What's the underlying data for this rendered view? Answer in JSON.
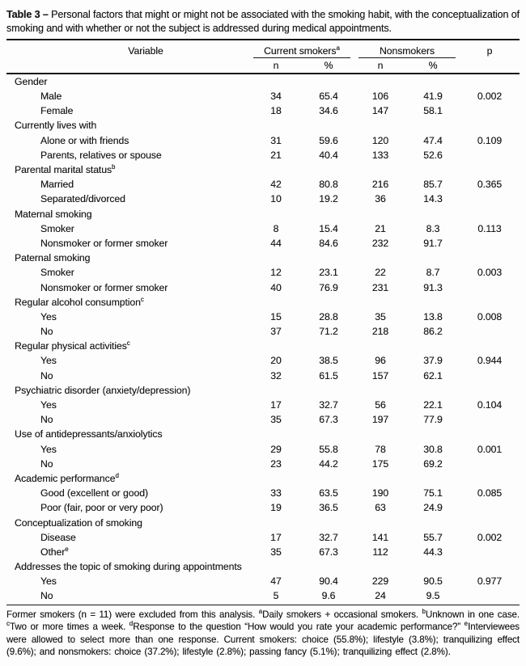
{
  "title": {
    "label": "Table 3 –",
    "text": "Personal factors that might or might not be associated with the smoking habit, with the conceptualization of smoking and with whether or not the subject is addressed during medical appointments."
  },
  "header": {
    "variable": "Variable",
    "group1": "Current smokers",
    "group1_sup": "a",
    "group2": "Nonsmokers",
    "p": "p",
    "col_n": "n",
    "col_pct": "%"
  },
  "sections": [
    {
      "label": "Gender",
      "sup": "",
      "rows": [
        {
          "label": "Male",
          "sup": "",
          "n1": "34",
          "pct1": "65.4",
          "n2": "106",
          "pct2": "41.9",
          "p": "0.002"
        },
        {
          "label": "Female",
          "sup": "",
          "n1": "18",
          "pct1": "34.6",
          "n2": "147",
          "pct2": "58.1",
          "p": ""
        }
      ]
    },
    {
      "label": "Currently lives with",
      "sup": "",
      "rows": [
        {
          "label": "Alone or with friends",
          "sup": "",
          "n1": "31",
          "pct1": "59.6",
          "n2": "120",
          "pct2": "47.4",
          "p": "0.109"
        },
        {
          "label": "Parents, relatives or spouse",
          "sup": "",
          "n1": "21",
          "pct1": "40.4",
          "n2": "133",
          "pct2": "52.6",
          "p": ""
        }
      ]
    },
    {
      "label": "Parental marital status",
      "sup": "b",
      "rows": [
        {
          "label": "Married",
          "sup": "",
          "n1": "42",
          "pct1": "80.8",
          "n2": "216",
          "pct2": "85.7",
          "p": "0.365"
        },
        {
          "label": "Separated/divorced",
          "sup": "",
          "n1": "10",
          "pct1": "19.2",
          "n2": "36",
          "pct2": "14.3",
          "p": ""
        }
      ]
    },
    {
      "label": "Maternal smoking",
      "sup": "",
      "rows": [
        {
          "label": "Smoker",
          "sup": "",
          "n1": "8",
          "pct1": "15.4",
          "n2": "21",
          "pct2": "8.3",
          "p": "0.113"
        },
        {
          "label": "Nonsmoker or former smoker",
          "sup": "",
          "n1": "44",
          "pct1": "84.6",
          "n2": "232",
          "pct2": "91.7",
          "p": ""
        }
      ]
    },
    {
      "label": "Paternal smoking",
      "sup": "",
      "rows": [
        {
          "label": "Smoker",
          "sup": "",
          "n1": "12",
          "pct1": "23.1",
          "n2": "22",
          "pct2": "8.7",
          "p": "0.003"
        },
        {
          "label": "Nonsmoker or former smoker",
          "sup": "",
          "n1": "40",
          "pct1": "76.9",
          "n2": "231",
          "pct2": "91.3",
          "p": ""
        }
      ]
    },
    {
      "label": "Regular alcohol consumption",
      "sup": "c",
      "rows": [
        {
          "label": "Yes",
          "sup": "",
          "n1": "15",
          "pct1": "28.8",
          "n2": "35",
          "pct2": "13.8",
          "p": "0.008"
        },
        {
          "label": "No",
          "sup": "",
          "n1": "37",
          "pct1": "71.2",
          "n2": "218",
          "pct2": "86.2",
          "p": ""
        }
      ]
    },
    {
      "label": "Regular physical activities",
      "sup": "c",
      "rows": [
        {
          "label": "Yes",
          "sup": "",
          "n1": "20",
          "pct1": "38.5",
          "n2": "96",
          "pct2": "37.9",
          "p": "0.944"
        },
        {
          "label": "No",
          "sup": "",
          "n1": "32",
          "pct1": "61.5",
          "n2": "157",
          "pct2": "62.1",
          "p": ""
        }
      ]
    },
    {
      "label": "Psychiatric disorder (anxiety/depression)",
      "sup": "",
      "rows": [
        {
          "label": "Yes",
          "sup": "",
          "n1": "17",
          "pct1": "32.7",
          "n2": "56",
          "pct2": "22.1",
          "p": "0.104"
        },
        {
          "label": "No",
          "sup": "",
          "n1": "35",
          "pct1": "67.3",
          "n2": "197",
          "pct2": "77.9",
          "p": ""
        }
      ]
    },
    {
      "label": "Use of antidepressants/anxiolytics",
      "sup": "",
      "rows": [
        {
          "label": "Yes",
          "sup": "",
          "n1": "29",
          "pct1": "55.8",
          "n2": "78",
          "pct2": "30.8",
          "p": "0.001"
        },
        {
          "label": "No",
          "sup": "",
          "n1": "23",
          "pct1": "44.2",
          "n2": "175",
          "pct2": "69.2",
          "p": ""
        }
      ]
    },
    {
      "label": "Academic performance",
      "sup": "d",
      "rows": [
        {
          "label": "Good (excellent or good)",
          "sup": "",
          "n1": "33",
          "pct1": "63.5",
          "n2": "190",
          "pct2": "75.1",
          "p": "0.085"
        },
        {
          "label": "Poor (fair, poor or very poor)",
          "sup": "",
          "n1": "19",
          "pct1": "36.5",
          "n2": "63",
          "pct2": "24.9",
          "p": ""
        }
      ]
    },
    {
      "label": "Conceptualization of smoking",
      "sup": "",
      "rows": [
        {
          "label": "Disease",
          "sup": "",
          "n1": "17",
          "pct1": "32.7",
          "n2": "141",
          "pct2": "55.7",
          "p": "0.002"
        },
        {
          "label": "Other",
          "sup": "e",
          "n1": "35",
          "pct1": "67.3",
          "n2": "112",
          "pct2": "44.3",
          "p": ""
        }
      ]
    },
    {
      "label": "Addresses the topic of smoking during appointments",
      "sup": "",
      "rows": [
        {
          "label": "Yes",
          "sup": "",
          "n1": "47",
          "pct1": "90.4",
          "n2": "229",
          "pct2": "90.5",
          "p": "0.977"
        },
        {
          "label": "No",
          "sup": "",
          "n1": "5",
          "pct1": "9.6",
          "n2": "24",
          "pct2": "9.5",
          "p": ""
        }
      ]
    }
  ],
  "footnotes": [
    {
      "sup": "",
      "text": "Former smokers (n = 11) were excluded from this analysis. "
    },
    {
      "sup": "a",
      "text": "Daily smokers + occasional smokers. "
    },
    {
      "sup": "b",
      "text": "Unknown in one case. "
    },
    {
      "sup": "c",
      "text": "Two or more times a week. "
    },
    {
      "sup": "d",
      "text": "Response to the question “How would you rate your academic performance?” "
    },
    {
      "sup": "e",
      "text": "Interviewees were allowed to select more than one response. Current smokers: choice (55.8%); lifestyle (3.8%); tranquilizing effect (9.6%); and nonsmokers: choice (37.2%); lifestyle (2.8%); passing fancy (5.1%); tranquilizing effect (2.8%)."
    }
  ]
}
